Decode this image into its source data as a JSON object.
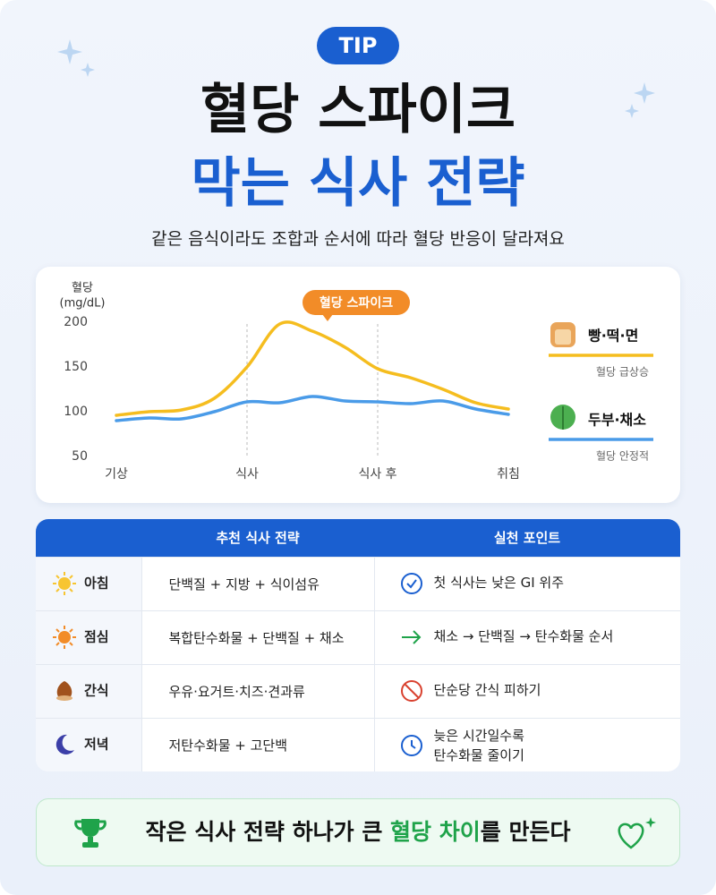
{
  "header": {
    "badge": "TIP",
    "title_lines": [
      "혈당 스파이크",
      "막는 식사 전략"
    ],
    "subtitle": "같은 음식이라도 조합과 순서에 따라 혈당 반응이 달라져요"
  },
  "chart_data": {
    "type": "line",
    "ylabel_lines": [
      "혈당",
      "(mg/dL)"
    ],
    "x": [
      0,
      0.25,
      0.5,
      0.75,
      1,
      1.25,
      1.5,
      1.75,
      2,
      2.25,
      2.5,
      2.75,
      3
    ],
    "xlim": [
      0,
      3
    ],
    "xticks": [
      {
        "value": 0,
        "label": "기상"
      },
      {
        "value": 1,
        "label": "식사"
      },
      {
        "value": 2,
        "label": "식사 후"
      },
      {
        "value": 3,
        "label": "취침"
      }
    ],
    "ylim": [
      50,
      200
    ],
    "yticks": [
      50,
      100,
      150,
      200
    ],
    "grid": false,
    "series": [
      {
        "name": "빵·떡·면",
        "description": "혈당 급상승",
        "color": "#f5bd1f",
        "values": [
          96,
          100,
          102,
          115,
          150,
          198,
          190,
          172,
          148,
          138,
          125,
          110,
          103
        ]
      },
      {
        "name": "두부·채소",
        "description": "혈당 안정적",
        "color": "#4a9be8",
        "values": [
          90,
          93,
          92,
          100,
          111,
          110,
          117,
          112,
          111,
          109,
          112,
          103,
          97
        ]
      }
    ],
    "annotation": "혈당 스파이크"
  },
  "table": {
    "columns": [
      "추천 식사 전략",
      "실천 포인트"
    ],
    "rows": [
      {
        "meal": "아침",
        "strategy": "단백질 + 지방 + 식이섬유",
        "point": "첫 식사는 낮은 GI 위주"
      },
      {
        "meal": "점심",
        "strategy": "복합탄수화물 + 단백질 + 채소",
        "point": "채소 → 단백질 → 탄수화물 순서"
      },
      {
        "meal": "간식",
        "strategy": "우유·요거트·치즈·견과류",
        "point": "단순당 간식 피하기"
      },
      {
        "meal": "저녁",
        "strategy": "저탄수화물 + 고단백",
        "point": "늦은 시간일수록\n탄수화물 줄이기"
      }
    ]
  },
  "footer": {
    "parts": [
      "작은 식사 전략 하나가 큰 ",
      "혈당 차이",
      "를 만든다"
    ]
  }
}
